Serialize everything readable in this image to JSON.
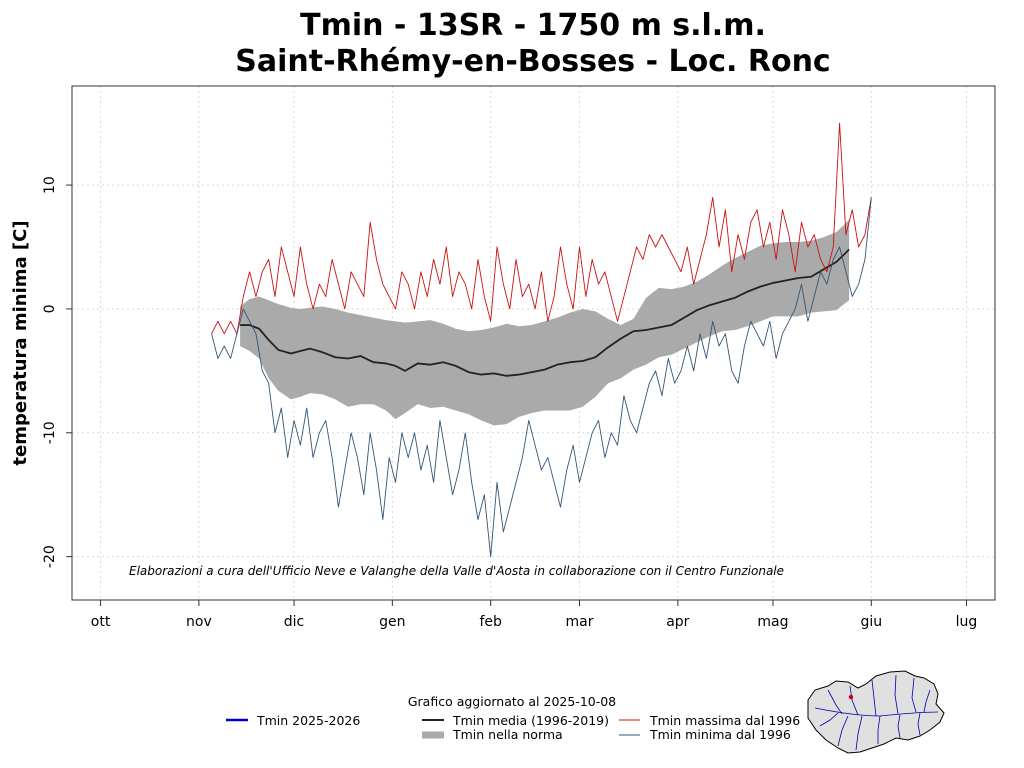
{
  "chart_data": {
    "type": "line",
    "title": [
      "Tmin - 13SR - 1750 m s.l.m.",
      "Saint-Rhémy-en-Bosses - Loc. Ronc"
    ],
    "xlabel": "",
    "ylabel": "temperatura minima [C]",
    "xlim": [
      -9,
      282
    ],
    "ylim": [
      -23.5,
      18
    ],
    "grid": true,
    "x_unit": "days since 1 Oct",
    "month_ticks": [
      {
        "label": "ott",
        "day": 0
      },
      {
        "label": "nov",
        "day": 31
      },
      {
        "label": "dic",
        "day": 61
      },
      {
        "label": "gen",
        "day": 92
      },
      {
        "label": "feb",
        "day": 123
      },
      {
        "label": "mar",
        "day": 151
      },
      {
        "label": "apr",
        "day": 182
      },
      {
        "label": "mag",
        "day": 212
      },
      {
        "label": "giu",
        "day": 243
      },
      {
        "label": "lug",
        "day": 273
      }
    ],
    "y_ticks": [
      {
        "label": "10",
        "value": 10
      },
      {
        "label": "0",
        "value": 0
      },
      {
        "label": "-10",
        "value": -10
      },
      {
        "label": "-20",
        "value": -20
      }
    ],
    "credit": "Elaborazioni a cura dell'Ufficio Neve e Valanghe della Valle d'Aosta in collaborazione con il Centro Funzionale",
    "updated": "Grafico aggiornato al 2025-10-08",
    "series": [
      {
        "name": "Tmin nella norma",
        "kind": "band",
        "color": "#aaaaaa",
        "x": [
          44,
          47,
          50,
          53,
          56,
          60,
          63,
          66,
          70,
          74,
          78,
          82,
          86,
          90,
          93,
          96,
          100,
          104,
          108,
          112,
          116,
          120,
          124,
          128,
          132,
          136,
          140,
          144,
          148,
          152,
          156,
          160,
          164,
          168,
          172,
          176,
          180,
          184,
          188,
          192,
          196,
          200,
          204,
          208,
          212,
          216,
          220,
          224,
          228,
          232,
          236
        ],
        "upper": [
          0.2,
          0.8,
          1.0,
          0.7,
          0.4,
          0.1,
          0.0,
          0.1,
          0.2,
          0.0,
          -0.3,
          -0.5,
          -0.7,
          -0.9,
          -1.0,
          -1.1,
          -1.0,
          -0.9,
          -1.2,
          -1.6,
          -1.8,
          -1.7,
          -1.5,
          -1.2,
          -1.4,
          -1.3,
          -1.0,
          -0.7,
          -0.3,
          0.0,
          -0.2,
          -0.8,
          -1.3,
          -0.8,
          0.9,
          1.7,
          1.6,
          1.8,
          2.2,
          2.8,
          3.5,
          4.1,
          4.6,
          5.1,
          5.3,
          5.4,
          5.4,
          5.5,
          5.8,
          6.2,
          7.2
        ],
        "lower": [
          -3.0,
          -3.4,
          -4.0,
          -5.6,
          -6.6,
          -7.3,
          -7.1,
          -6.8,
          -6.9,
          -7.3,
          -7.9,
          -7.7,
          -7.7,
          -8.2,
          -8.9,
          -8.4,
          -7.7,
          -8.0,
          -7.9,
          -8.2,
          -8.5,
          -9.0,
          -9.4,
          -9.3,
          -8.7,
          -8.4,
          -8.2,
          -8.2,
          -8.2,
          -7.9,
          -7.1,
          -6.0,
          -5.6,
          -4.9,
          -4.5,
          -3.9,
          -3.7,
          -3.2,
          -2.7,
          -2.2,
          -1.8,
          -1.7,
          -1.4,
          -1.0,
          -0.6,
          -0.6,
          -0.6,
          -0.3,
          -0.2,
          -0.1,
          0.7
        ]
      },
      {
        "name": "Tmin media (1996-2019)",
        "kind": "line",
        "color": "#222222",
        "x": [
          44,
          47,
          50,
          53,
          56,
          60,
          63,
          66,
          70,
          74,
          78,
          82,
          86,
          90,
          93,
          96,
          100,
          104,
          108,
          112,
          116,
          120,
          124,
          128,
          132,
          136,
          140,
          144,
          148,
          152,
          156,
          160,
          164,
          168,
          172,
          176,
          180,
          184,
          188,
          192,
          196,
          200,
          204,
          208,
          212,
          216,
          220,
          224,
          228,
          232,
          236
        ],
        "values": [
          -1.3,
          -1.3,
          -1.6,
          -2.5,
          -3.3,
          -3.6,
          -3.4,
          -3.2,
          -3.5,
          -3.9,
          -4.0,
          -3.8,
          -4.3,
          -4.4,
          -4.6,
          -5.0,
          -4.4,
          -4.5,
          -4.3,
          -4.6,
          -5.1,
          -5.3,
          -5.2,
          -5.4,
          -5.3,
          -5.1,
          -4.9,
          -4.5,
          -4.3,
          -4.2,
          -3.9,
          -3.1,
          -2.4,
          -1.8,
          -1.7,
          -1.5,
          -1.3,
          -0.7,
          -0.1,
          0.3,
          0.6,
          0.9,
          1.4,
          1.8,
          2.1,
          2.3,
          2.5,
          2.6,
          3.2,
          3.8,
          4.8
        ]
      },
      {
        "name": "Tmin massima dal 1996",
        "kind": "line",
        "color": "#cc1111",
        "x": [
          35,
          37,
          39,
          41,
          43,
          45,
          47,
          49,
          51,
          53,
          55,
          57,
          59,
          61,
          63,
          65,
          67,
          69,
          71,
          73,
          75,
          77,
          79,
          81,
          83,
          85,
          87,
          89,
          91,
          93,
          95,
          97,
          99,
          101,
          103,
          105,
          107,
          109,
          111,
          113,
          115,
          117,
          119,
          121,
          123,
          125,
          127,
          129,
          131,
          133,
          135,
          137,
          139,
          141,
          143,
          145,
          147,
          149,
          151,
          153,
          155,
          157,
          159,
          161,
          163,
          165,
          167,
          169,
          171,
          173,
          175,
          177,
          179,
          181,
          183,
          185,
          187,
          189,
          191,
          193,
          195,
          197,
          199,
          201,
          203,
          205,
          207,
          209,
          211,
          213,
          215,
          217,
          219,
          221,
          223,
          225,
          227,
          229,
          231,
          233,
          235,
          237,
          239,
          241,
          243
        ],
        "values": [
          -2,
          -1,
          -2,
          -1,
          -2,
          1,
          3,
          1,
          3,
          4,
          1,
          5,
          3,
          1,
          5,
          2,
          0,
          2,
          1,
          4,
          2,
          0,
          3,
          2,
          1,
          7,
          4,
          2,
          1,
          0,
          3,
          2,
          0,
          3,
          1,
          4,
          2,
          5,
          1,
          3,
          2,
          0,
          4,
          1,
          -1,
          5,
          2,
          0,
          4,
          1,
          2,
          0,
          3,
          -1,
          1,
          5,
          2,
          0,
          5,
          1,
          4,
          2,
          3,
          1,
          -1,
          1,
          3,
          5,
          4,
          6,
          5,
          6,
          5,
          4,
          3,
          5,
          2,
          4,
          6,
          9,
          5,
          8,
          3,
          6,
          4,
          7,
          8,
          5,
          7,
          4,
          8,
          6,
          3,
          7,
          5,
          6,
          4,
          3,
          5,
          15,
          6,
          8,
          5,
          6,
          9
        ]
      },
      {
        "name": "Tmin minima dal 1996",
        "kind": "line",
        "color": "#335577",
        "x": [
          35,
          37,
          39,
          41,
          43,
          45,
          47,
          49,
          51,
          53,
          55,
          57,
          59,
          61,
          63,
          65,
          67,
          69,
          71,
          73,
          75,
          77,
          79,
          81,
          83,
          85,
          87,
          89,
          91,
          93,
          95,
          97,
          99,
          101,
          103,
          105,
          107,
          109,
          111,
          113,
          115,
          117,
          119,
          121,
          123,
          125,
          127,
          129,
          131,
          133,
          135,
          137,
          139,
          141,
          143,
          145,
          147,
          149,
          151,
          153,
          155,
          157,
          159,
          161,
          163,
          165,
          167,
          169,
          171,
          173,
          175,
          177,
          179,
          181,
          183,
          185,
          187,
          189,
          191,
          193,
          195,
          197,
          199,
          201,
          203,
          205,
          207,
          209,
          211,
          213,
          215,
          217,
          219,
          221,
          223,
          225,
          227,
          229,
          231,
          233,
          235,
          237,
          239,
          241,
          243
        ],
        "values": [
          -2,
          -4,
          -3,
          -4,
          -2,
          0,
          -1,
          -2,
          -5,
          -6,
          -10,
          -8,
          -12,
          -9,
          -11,
          -8,
          -12,
          -10,
          -9,
          -12,
          -16,
          -13,
          -10,
          -12,
          -15,
          -10,
          -13,
          -17,
          -12,
          -14,
          -10,
          -12,
          -10,
          -13,
          -11,
          -14,
          -9,
          -12,
          -15,
          -13,
          -10,
          -14,
          -17,
          -15,
          -20,
          -14,
          -18,
          -16,
          -14,
          -12,
          -9,
          -11,
          -13,
          -12,
          -14,
          -16,
          -13,
          -11,
          -14,
          -12,
          -10,
          -9,
          -12,
          -10,
          -11,
          -7,
          -9,
          -10,
          -8,
          -6,
          -5,
          -7,
          -4,
          -6,
          -5,
          -3,
          -5,
          -2,
          -4,
          -1,
          -3,
          -2,
          -5,
          -6,
          -3,
          -1,
          -2,
          -3,
          -1,
          -4,
          -2,
          -1,
          0,
          2,
          -1,
          1,
          3,
          2,
          4,
          5,
          3,
          1,
          2,
          4,
          9
        ]
      },
      {
        "name": "Tmin 2025-2026",
        "kind": "line",
        "color": "#0000cc",
        "x": [],
        "values": []
      }
    ],
    "legend": {
      "placement": "bottom",
      "items": [
        {
          "label": "Tmin 2025-2026",
          "color": "#0000cc",
          "style": "thick"
        },
        {
          "label": "Tmin media (1996-2019)",
          "color": "#222222",
          "style": "medium"
        },
        {
          "label": "Tmin massima dal 1996",
          "color": "#cc1111",
          "style": "thin"
        },
        {
          "label": "Tmin nella norma",
          "color": "#aaaaaa",
          "style": "band"
        },
        {
          "label": "Tmin minima dal 1996",
          "color": "#335577",
          "style": "thin"
        }
      ]
    }
  },
  "map": {
    "name": "Valle d'Aosta region map with station location",
    "fill": "#e0e0e0",
    "river_color": "#0000aa",
    "station_color": "#cc0000"
  }
}
